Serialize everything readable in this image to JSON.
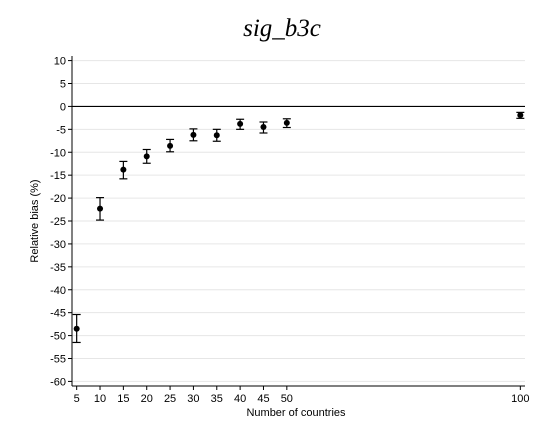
{
  "chart_data": {
    "type": "scatter",
    "title": "sig_b3c",
    "xlabel": "Number of countries",
    "ylabel": "Relative bias (%)",
    "xlim": [
      4,
      101
    ],
    "ylim": [
      -61,
      11
    ],
    "xticks": [
      5,
      10,
      15,
      20,
      25,
      30,
      35,
      40,
      45,
      50,
      100
    ],
    "yticks": [
      10,
      5,
      0,
      -5,
      -10,
      -15,
      -20,
      -25,
      -30,
      -35,
      -40,
      -45,
      -50,
      -55,
      -60
    ],
    "grid": true,
    "reference_line_y": 0,
    "series": [
      {
        "x": [
          5,
          10,
          15,
          20,
          25,
          30,
          35,
          40,
          45,
          50,
          100
        ],
        "y": [
          -48.5,
          -22.3,
          -13.8,
          -10.9,
          -8.6,
          -6.2,
          -6.3,
          -3.8,
          -4.5,
          -3.6,
          -1.9
        ],
        "err_low": [
          -51.5,
          -24.8,
          -15.8,
          -12.4,
          -9.9,
          -7.5,
          -7.6,
          -5.0,
          -5.8,
          -4.6,
          -2.6
        ],
        "err_high": [
          -45.4,
          -19.9,
          -12.0,
          -9.4,
          -7.2,
          -4.9,
          -5.0,
          -2.8,
          -3.4,
          -2.7,
          -1.3
        ]
      }
    ]
  }
}
